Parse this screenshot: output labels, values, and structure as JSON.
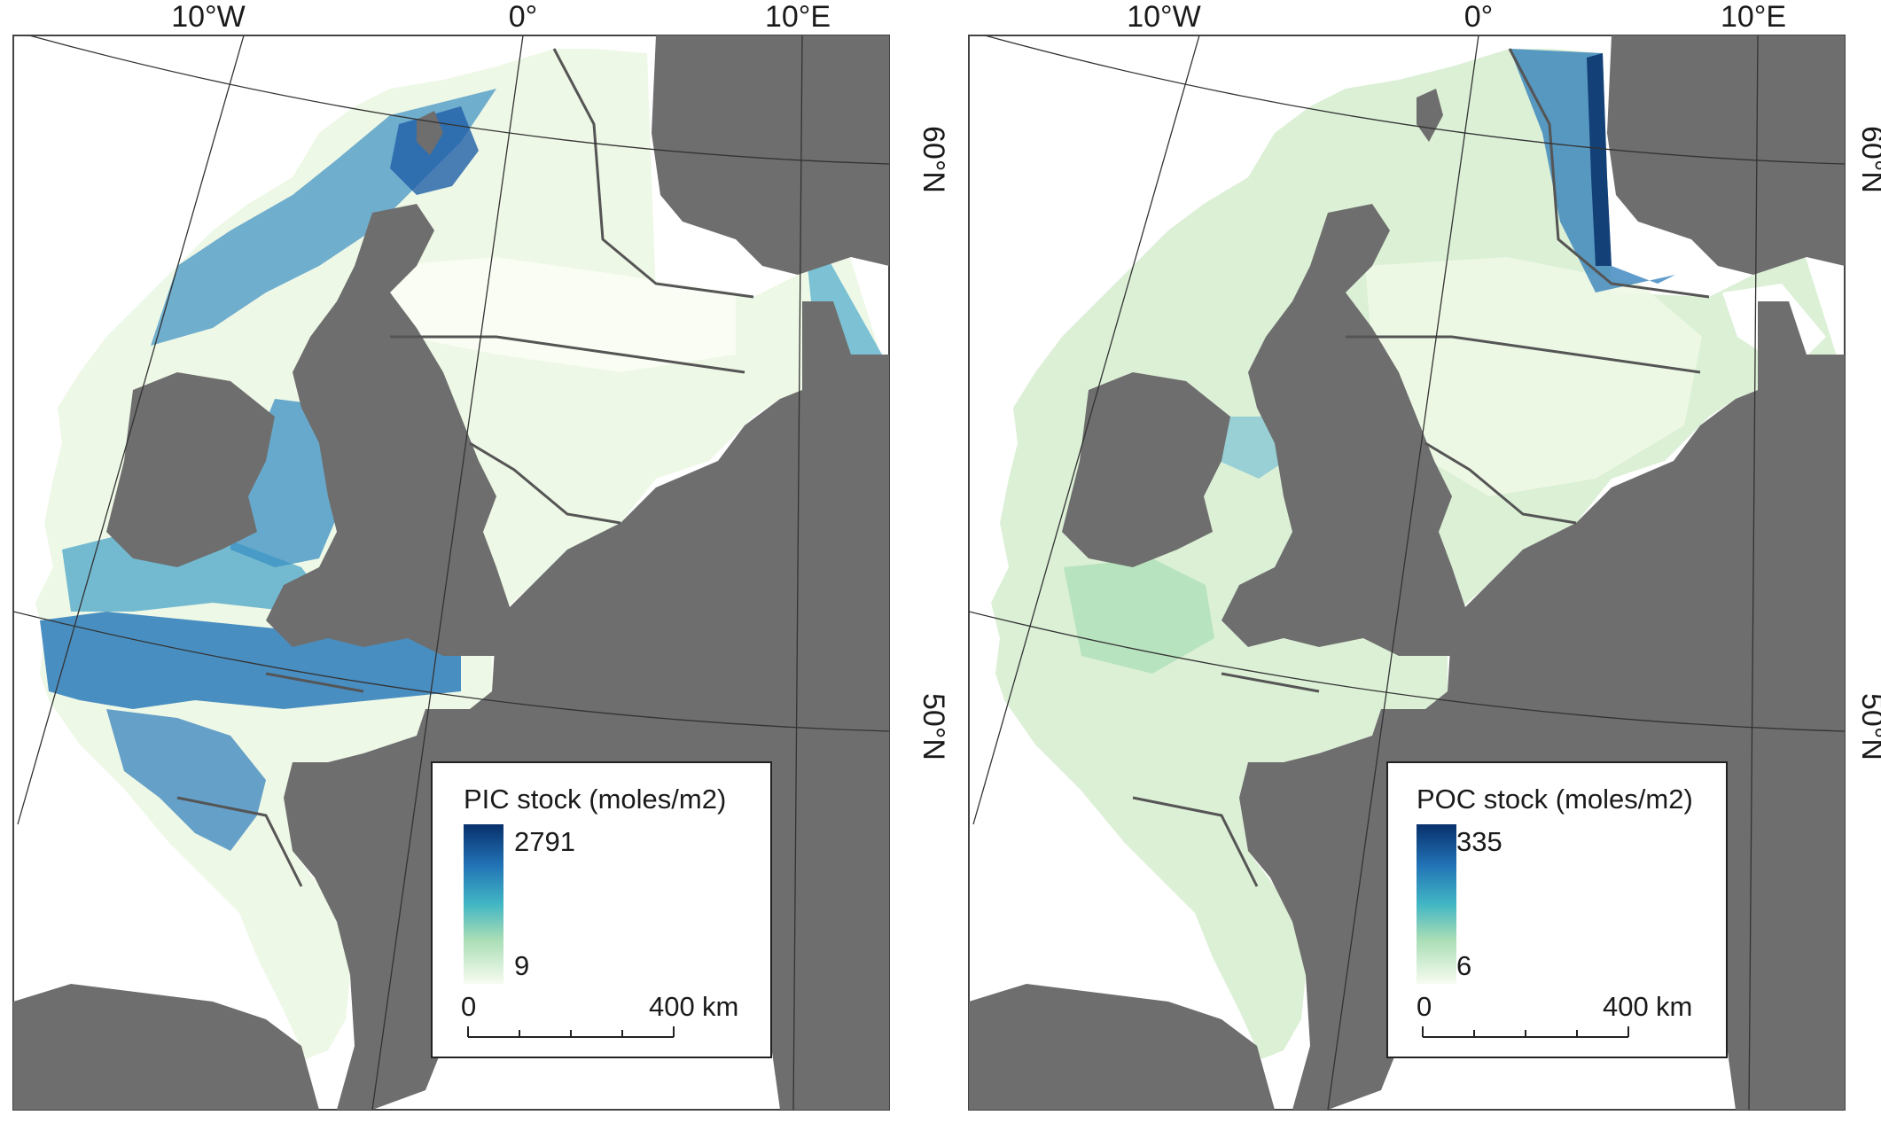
{
  "colors": {
    "land": "#6e6e6e",
    "sea_outside": "#ffffff",
    "ramp_high": "#08519c",
    "ramp_mid": "#41b6c4",
    "ramp_mid2": "#a8ddb5",
    "ramp_low": "#f7fcf0",
    "border": "#555555",
    "graticule": "#333333"
  },
  "panels": [
    {
      "id": "pic",
      "graticule_labels": {
        "lon": [
          "10°W",
          "0°",
          "10°E"
        ],
        "lat": [
          "60°N",
          "50°N"
        ]
      },
      "legend": {
        "title": "PIC stock (moles/m2)",
        "max_label": "2791",
        "min_label": "9",
        "scale_start": "0",
        "scale_end": "400",
        "scale_unit": "km"
      }
    },
    {
      "id": "poc",
      "graticule_labels": {
        "lon": [
          "10°W",
          "0°",
          "10°E"
        ],
        "lat": [
          "60°N",
          "50°N"
        ]
      },
      "legend": {
        "title": "POC stock (moles/m2)",
        "max_label": "335",
        "min_label": "6",
        "scale_start": "0",
        "scale_end": "400",
        "scale_unit": "km"
      }
    }
  ]
}
